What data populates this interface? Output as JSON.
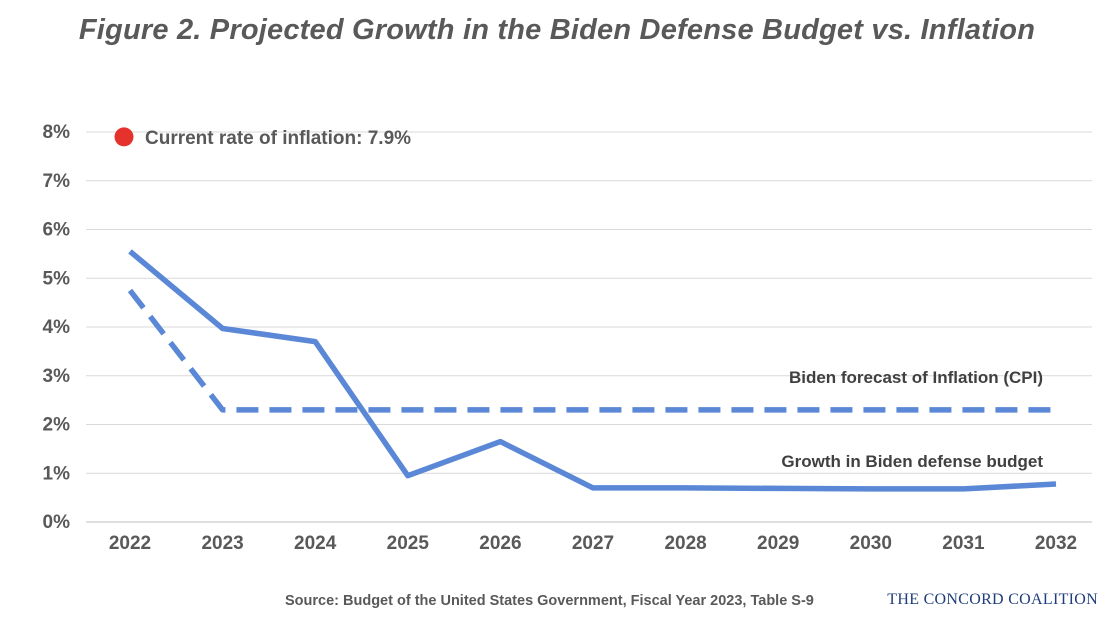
{
  "title": "Figure 2. Projected Growth in the Biden Defense Budget vs. Inflation",
  "source": "Source: Budget of the United States Government, Fiscal Year 2023, Table S-9",
  "logo": "THE CONCORD COALITION",
  "colors": {
    "series": "#5b88d6",
    "marker": "#e5322d",
    "grid": "#d9d9d9",
    "text": "#595959"
  },
  "chart_data": {
    "type": "line",
    "title": "Figure 2. Projected Growth in the Biden Defense Budget vs. Inflation",
    "xlabel": "",
    "ylabel": "",
    "ylim": [
      0,
      8
    ],
    "ytick_labels": [
      "0%",
      "1%",
      "2%",
      "3%",
      "4%",
      "5%",
      "6%",
      "7%",
      "8%"
    ],
    "ytick_values": [
      0,
      1,
      2,
      3,
      4,
      5,
      6,
      7,
      8
    ],
    "categories": [
      "2022",
      "2023",
      "2024",
      "2025",
      "2026",
      "2027",
      "2028",
      "2029",
      "2030",
      "2031",
      "2032"
    ],
    "series": [
      {
        "name": "Growth in Biden defense budget",
        "style": "solid",
        "values": [
          5.55,
          3.97,
          3.7,
          0.95,
          1.65,
          0.7,
          0.7,
          0.69,
          0.68,
          0.68,
          0.78
        ]
      },
      {
        "name": "Biden forecast of Inflation (CPI)",
        "style": "dashed",
        "values": [
          4.75,
          2.3,
          2.3,
          2.3,
          2.3,
          2.3,
          2.3,
          2.3,
          2.3,
          2.3,
          2.3
        ]
      }
    ],
    "annotation": {
      "label": "Current rate of inflation: 7.9%",
      "value": 7.9,
      "marker": "red-dot"
    },
    "grid": true
  }
}
